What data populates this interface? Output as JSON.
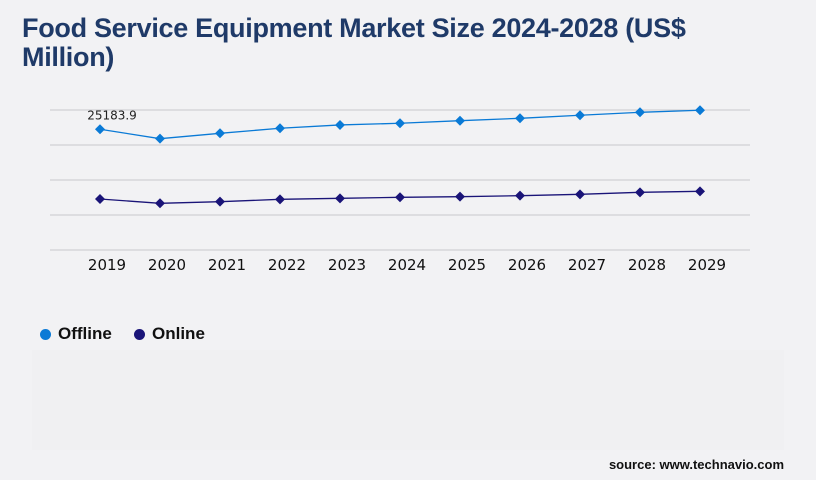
{
  "title": "Food Service Equipment Market Size 2024-2028 (US$ Million)",
  "source": "source: www.technavio.com",
  "chart_data": {
    "type": "line",
    "title": "Food Service Equipment Market Size 2024-2028 (US$ Million)",
    "xlabel": "",
    "ylabel": "",
    "categories": [
      "2019",
      "2020",
      "2021",
      "2022",
      "2023",
      "2024",
      "2025",
      "2026",
      "2027",
      "2028",
      "2029"
    ],
    "ylim": [
      0,
      29200
    ],
    "grid": true,
    "y_tick_labels_shown": false,
    "legend_position": "bottom-left",
    "series": [
      {
        "name": "Offline",
        "color": "#0a7ad6",
        "values": [
          25183.9,
          23220,
          24340,
          25390,
          26080,
          26430,
          26970,
          27470,
          28100,
          28720,
          29140
        ]
      },
      {
        "name": "Online",
        "color": "#1a1478",
        "values": [
          10640,
          9740,
          10080,
          10570,
          10780,
          10990,
          11120,
          11330,
          11610,
          12030,
          12240
        ]
      }
    ],
    "annotations": [
      {
        "category": "2019",
        "series": "Offline",
        "text": "25183.9"
      }
    ]
  }
}
